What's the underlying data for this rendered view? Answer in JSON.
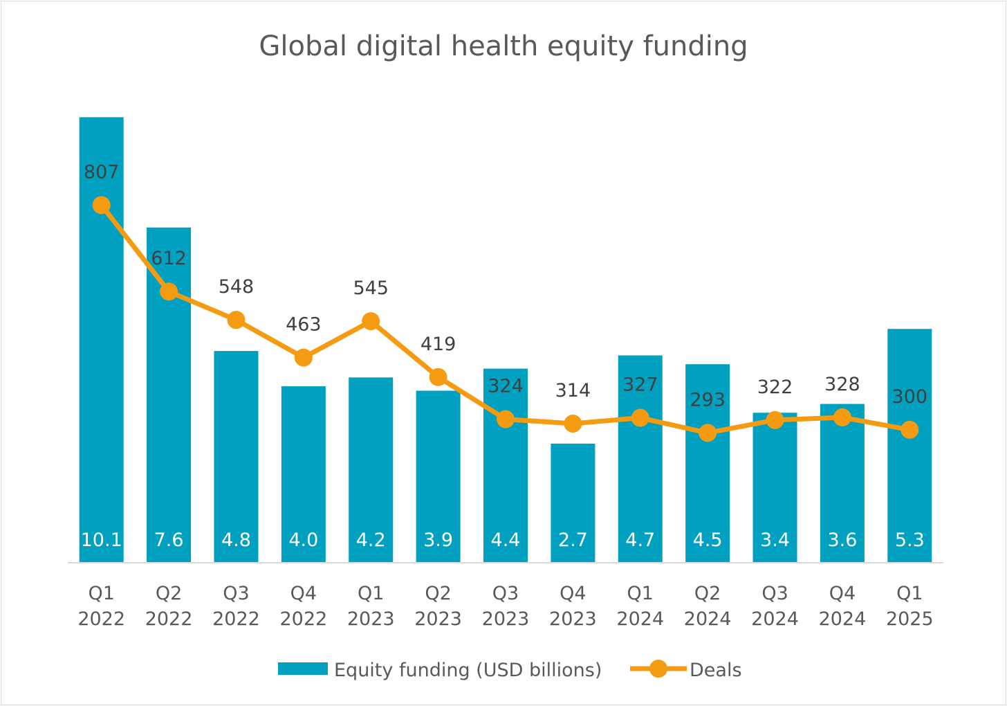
{
  "chart_data": {
    "type": "bar",
    "title": "Global digital health equity funding",
    "categories": [
      [
        "Q1",
        "2022"
      ],
      [
        "Q2",
        "2022"
      ],
      [
        "Q3",
        "2022"
      ],
      [
        "Q4",
        "2022"
      ],
      [
        "Q1",
        "2023"
      ],
      [
        "Q2",
        "2023"
      ],
      [
        "Q3",
        "2023"
      ],
      [
        "Q4",
        "2023"
      ],
      [
        "Q1",
        "2024"
      ],
      [
        "Q2",
        "2024"
      ],
      [
        "Q3",
        "2024"
      ],
      [
        "Q4",
        "2024"
      ],
      [
        "Q1",
        "2025"
      ]
    ],
    "series": [
      {
        "name": "Equity funding (USD billions)",
        "type": "bar",
        "color": "#00A0C0",
        "values": [
          10.1,
          7.6,
          4.8,
          4.0,
          4.2,
          3.9,
          4.4,
          2.7,
          4.7,
          4.5,
          3.4,
          3.6,
          5.3
        ],
        "labels": [
          "10.1",
          "7.6",
          "4.8",
          "4.0",
          "4.2",
          "3.9",
          "4.4",
          "2.7",
          "4.7",
          "4.5",
          "3.4",
          "3.6",
          "5.3"
        ]
      },
      {
        "name": "Deals",
        "type": "line",
        "color": "#F59B12",
        "values": [
          807,
          612,
          548,
          463,
          545,
          419,
          324,
          314,
          327,
          293,
          322,
          328,
          300
        ],
        "labels": [
          "807",
          "612",
          "548",
          "463",
          "545",
          "419",
          "324",
          "314",
          "327",
          "293",
          "322",
          "328",
          "300"
        ]
      }
    ],
    "primary_axis": {
      "min": 0,
      "max": 11.0,
      "visible": false
    },
    "secondary_axis": {
      "min": 0,
      "max": 1095,
      "visible": false
    },
    "grid": false,
    "legend": "bottom"
  }
}
